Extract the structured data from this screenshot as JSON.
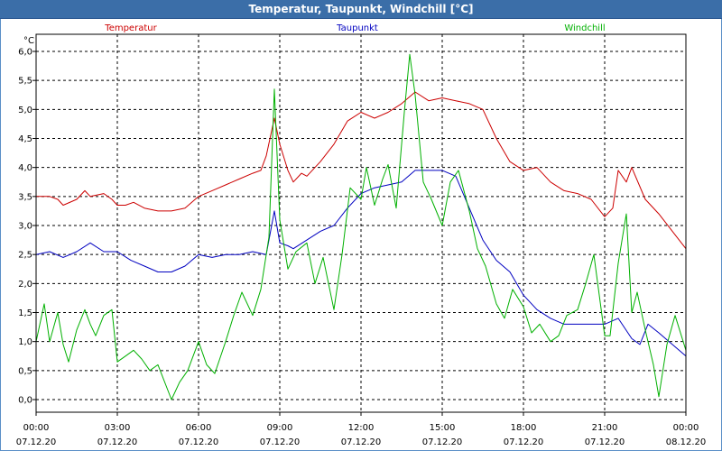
{
  "window": {
    "title": "Temperatur, Taupunkt, Windchill [°C]"
  },
  "chart_data": {
    "type": "line",
    "title": "Temperatur, Taupunkt, Windchill [°C]",
    "ylabel": "°C",
    "xlabel": "",
    "xlim": [
      0,
      24
    ],
    "ylim": [
      -0.2,
      6.2
    ],
    "grid": true,
    "legend_position": "top",
    "y_ticks": [
      "0,0",
      "0,5",
      "1,0",
      "1,5",
      "2,0",
      "2,5",
      "3,0",
      "3,5",
      "4,0",
      "4,5",
      "5,0",
      "5,5",
      "6,0"
    ],
    "x_ticks": [
      {
        "time": "00:00",
        "date": "07.12.20"
      },
      {
        "time": "03:00",
        "date": "07.12.20"
      },
      {
        "time": "06:00",
        "date": "07.12.20"
      },
      {
        "time": "09:00",
        "date": "07.12.20"
      },
      {
        "time": "12:00",
        "date": "07.12.20"
      },
      {
        "time": "15:00",
        "date": "07.12.20"
      },
      {
        "time": "18:00",
        "date": "07.12.20"
      },
      {
        "time": "21:00",
        "date": "07.12.20"
      },
      {
        "time": "00:00",
        "date": "08.12.20"
      }
    ],
    "series": [
      {
        "name": "Temperatur",
        "color": "#cc0000",
        "x": [
          0,
          0.5,
          0.8,
          1,
          1.5,
          1.8,
          2,
          2.5,
          2.8,
          3,
          3.3,
          3.6,
          4,
          4.5,
          5,
          5.5,
          6,
          6.5,
          7,
          7.5,
          8,
          8.3,
          8.5,
          8.8,
          9,
          9.3,
          9.5,
          9.8,
          10,
          10.5,
          11,
          11.5,
          12,
          12.5,
          13,
          13.5,
          14,
          14.5,
          15,
          15.5,
          16,
          16.5,
          17,
          17.5,
          18,
          18.5,
          19,
          19.5,
          20,
          20.5,
          21,
          21.3,
          21.5,
          21.8,
          22,
          22.5,
          23,
          23.5,
          24
        ],
        "values": [
          3.5,
          3.5,
          3.45,
          3.35,
          3.45,
          3.6,
          3.5,
          3.55,
          3.45,
          3.35,
          3.35,
          3.4,
          3.3,
          3.25,
          3.25,
          3.3,
          3.5,
          3.6,
          3.7,
          3.8,
          3.9,
          3.95,
          4.2,
          4.85,
          4.4,
          3.95,
          3.75,
          3.9,
          3.85,
          4.1,
          4.4,
          4.8,
          4.95,
          4.85,
          4.95,
          5.1,
          5.3,
          5.15,
          5.2,
          5.15,
          5.1,
          5.0,
          4.5,
          4.1,
          3.95,
          4.0,
          3.75,
          3.6,
          3.55,
          3.45,
          3.15,
          3.3,
          3.95,
          3.75,
          4.0,
          3.45,
          3.2,
          2.9,
          2.6
        ]
      },
      {
        "name": "Taupunkt",
        "color": "#0000c0",
        "x": [
          0,
          0.5,
          1,
          1.5,
          2,
          2.5,
          3,
          3.5,
          4,
          4.5,
          5,
          5.5,
          6,
          6.5,
          7,
          7.5,
          8,
          8.5,
          8.8,
          9,
          9.3,
          9.5,
          10,
          10.5,
          11,
          11.5,
          12,
          12.5,
          13,
          13.5,
          14,
          14.5,
          15,
          15.5,
          16,
          16.5,
          17,
          17.5,
          18,
          18.5,
          19,
          19.5,
          20,
          20.5,
          21,
          21.5,
          22,
          22.3,
          22.6,
          23,
          23.5,
          24
        ],
        "values": [
          2.5,
          2.55,
          2.45,
          2.55,
          2.7,
          2.55,
          2.55,
          2.4,
          2.3,
          2.2,
          2.2,
          2.3,
          2.5,
          2.45,
          2.5,
          2.5,
          2.55,
          2.5,
          3.25,
          2.7,
          2.65,
          2.6,
          2.75,
          2.9,
          3.0,
          3.3,
          3.55,
          3.65,
          3.7,
          3.75,
          3.95,
          3.95,
          3.95,
          3.85,
          3.3,
          2.75,
          2.4,
          2.2,
          1.8,
          1.55,
          1.4,
          1.3,
          1.3,
          1.3,
          1.3,
          1.4,
          1.05,
          0.95,
          1.3,
          1.15,
          0.95,
          0.75
        ]
      },
      {
        "name": "Windchill",
        "color": "#00b000",
        "x": [
          0,
          0.3,
          0.5,
          0.8,
          1,
          1.2,
          1.5,
          1.8,
          2,
          2.2,
          2.5,
          2.8,
          3,
          3.3,
          3.6,
          3.9,
          4.2,
          4.5,
          5,
          5.3,
          5.6,
          6,
          6.3,
          6.6,
          7,
          7.3,
          7.6,
          8,
          8.3,
          8.6,
          8.8,
          9,
          9.3,
          9.6,
          10,
          10.3,
          10.6,
          11,
          11.3,
          11.6,
          12,
          12.2,
          12.5,
          12.8,
          13,
          13.3,
          13.6,
          13.8,
          14,
          14.3,
          14.6,
          15,
          15.3,
          15.6,
          16,
          16.3,
          16.6,
          17,
          17.3,
          17.6,
          18,
          18.3,
          18.6,
          19,
          19.3,
          19.6,
          20,
          20.3,
          20.6,
          21,
          21.2,
          21.5,
          21.8,
          22,
          22.2,
          22.5,
          22.8,
          23,
          23.3,
          23.6,
          24
        ],
        "values": [
          1.0,
          1.65,
          1.0,
          1.5,
          0.95,
          0.65,
          1.2,
          1.55,
          1.3,
          1.1,
          1.45,
          1.55,
          0.65,
          0.75,
          0.85,
          0.7,
          0.5,
          0.6,
          0.0,
          0.3,
          0.5,
          1.0,
          0.6,
          0.45,
          1.0,
          1.45,
          1.85,
          1.45,
          1.9,
          2.8,
          5.35,
          3.1,
          2.25,
          2.55,
          2.7,
          2.0,
          2.45,
          1.55,
          2.5,
          3.65,
          3.45,
          4.0,
          3.35,
          3.8,
          4.05,
          3.3,
          4.95,
          5.95,
          5.25,
          3.75,
          3.45,
          3.0,
          3.75,
          3.95,
          3.25,
          2.6,
          2.3,
          1.65,
          1.4,
          1.9,
          1.6,
          1.15,
          1.3,
          1.0,
          1.1,
          1.45,
          1.55,
          2.0,
          2.5,
          1.1,
          1.1,
          2.35,
          3.2,
          1.5,
          1.85,
          1.2,
          0.6,
          0.05,
          0.95,
          1.45,
          0.85
        ]
      }
    ]
  }
}
